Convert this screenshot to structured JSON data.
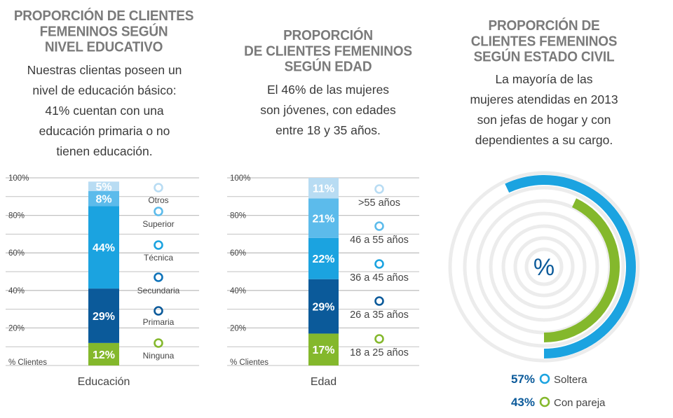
{
  "colors": {
    "otros": "#b8dcf3",
    "superior": "#5cbbeb",
    "tecnica": "#1ba3e0",
    "secundaria": "#0d72b9",
    "primaria": "#0b5a9a",
    "ninguna": "#84b82c",
    "grid": "#c2c2c2",
    "title": "#7a7a7a",
    "ring_light": "#ececec"
  },
  "panel_education": {
    "title": "PROPORCIÓN DE CLIENTES FEMENINOS SEGÚN NIVEL EDUCATIVO",
    "title_lines": [
      "PROPORCIÓN DE CLIENTES",
      "FEMENINOS SEGÚN",
      "NIVEL EDUCATIVO"
    ],
    "description_lines": [
      "Nuestras clientas poseen un",
      "nivel de educación básico:",
      "41% cuentan con una",
      "educación primaria o no",
      "tienen educación."
    ]
  },
  "panel_age": {
    "title": "PROPORCIÓN DE CLIENTES FEMENINOS SEGÚN EDAD",
    "title_lines": [
      "PROPORCIÓN",
      "DE CLIENTES FEMENINOS",
      "SEGÚN EDAD"
    ],
    "description_lines": [
      "El 46% de las mujeres",
      "son jóvenes, con edades",
      "entre 18 y 35 años."
    ]
  },
  "panel_civil": {
    "title": "PROPORCIÓN DE CLIENTES FEMENINOS SEGÚN ESTADO CIVIL",
    "title_lines": [
      "PROPORCIÓN DE",
      "CLIENTES FEMENINOS",
      "SEGÚN ESTADO CIVIL"
    ],
    "description_lines": [
      "La mayoría de las",
      "mujeres atendidas en 2013",
      "son jefas de hogar y con",
      "dependientes a su cargo."
    ]
  },
  "chart_data": [
    {
      "type": "bar",
      "stacked": true,
      "xlabel": "Educación",
      "ylabel": "% Clientes",
      "y_ticks": [
        "20%",
        "40%",
        "60%",
        "80%",
        "100%"
      ],
      "ylim": [
        0,
        100
      ],
      "series": [
        {
          "name": "Ninguna",
          "value": 12,
          "label": "12%",
          "color": "#84b82c"
        },
        {
          "name": "Primaria",
          "value": 29,
          "label": "29%",
          "color": "#0b5a9a"
        },
        {
          "name": "Secundaria",
          "value": 0,
          "label": "",
          "color": "#0d72b9"
        },
        {
          "name": "Técnica",
          "value": 44,
          "label": "44%",
          "color": "#1ba3e0"
        },
        {
          "name": "Superior",
          "value": 8,
          "label": "8%",
          "color": "#5cbbeb"
        },
        {
          "name": "Otros",
          "value": 5,
          "label": "5%",
          "color": "#b8dcf3"
        }
      ]
    },
    {
      "type": "bar",
      "stacked": true,
      "xlabel": "Edad",
      "ylabel": "% Clientes",
      "y_ticks": [
        "20%",
        "40%",
        "60%",
        "80%",
        "100%"
      ],
      "ylim": [
        0,
        100
      ],
      "series": [
        {
          "name": "18 a 25 años",
          "value": 17,
          "label": "17%",
          "color": "#84b82c"
        },
        {
          "name": "26 a 35 años",
          "value": 29,
          "label": "29%",
          "color": "#0b5a9a"
        },
        {
          "name": "36 a 45 años",
          "value": 22,
          "label": "22%",
          "color": "#1ba3e0"
        },
        {
          "name": "46 a 55 años",
          "value": 21,
          "label": "21%",
          "color": "#5cbbeb"
        },
        {
          "name": ">55 años",
          "value": 11,
          "label": "11%",
          "color": "#b8dcf3"
        }
      ]
    },
    {
      "type": "pie",
      "variant": "radial",
      "center_label": "%",
      "series": [
        {
          "name": "Soltera",
          "value": 57,
          "label": "57%",
          "color": "#1ba3e0"
        },
        {
          "name": "Con pareja",
          "value": 43,
          "label": "43%",
          "color": "#84b82c"
        }
      ]
    }
  ]
}
